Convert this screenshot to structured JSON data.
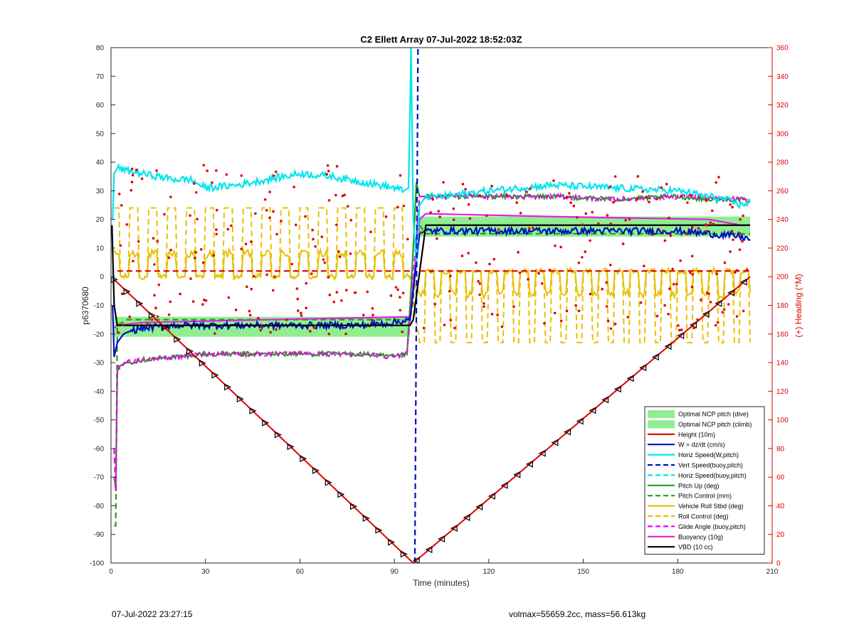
{
  "chart_data": {
    "type": "line",
    "title": "C2 Ellett Array 07-Jul-2022 18:52:03Z",
    "xlabel": "Time (minutes)",
    "ylabel": "p6370680",
    "y2label": "(+) Heading (°M)",
    "xlim": [
      0,
      210
    ],
    "ylim": [
      -100,
      80
    ],
    "y2lim": [
      0,
      360
    ],
    "xticks": [
      0,
      30,
      60,
      90,
      120,
      150,
      180,
      210
    ],
    "yticks": [
      -100,
      -90,
      -80,
      -70,
      -60,
      -50,
      -40,
      -30,
      -20,
      -10,
      0,
      10,
      20,
      30,
      40,
      50,
      60,
      70,
      80
    ],
    "y2ticks": [
      0,
      20,
      40,
      60,
      80,
      100,
      120,
      140,
      160,
      180,
      200,
      220,
      240,
      260,
      280,
      300,
      320,
      340,
      360
    ],
    "grid": false,
    "legend_position": "bottom-right",
    "series": [
      {
        "name": "Optimal NCP pitch (dive)",
        "style": "band",
        "color": "#90ee90",
        "x": [
          1,
          95
        ],
        "low": [
          -21,
          -21
        ],
        "high": [
          -14,
          -14
        ]
      },
      {
        "name": "Optimal NCP pitch (climb)",
        "style": "band",
        "color": "#90ee90",
        "x": [
          98,
          203
        ],
        "low": [
          14,
          14
        ],
        "high": [
          21,
          21
        ]
      },
      {
        "name": "Height (10m)",
        "style": "solid",
        "color": "#e00000",
        "x": [
          1,
          96,
          203
        ],
        "y": [
          -1,
          -100,
          0
        ]
      },
      {
        "name": "W = dz/dt (cm/s)",
        "style": "solid",
        "color": "#0010c0",
        "x": [
          0.5,
          1,
          2,
          4,
          6,
          10,
          20,
          30,
          40,
          50,
          60,
          70,
          80,
          90,
          95,
          96,
          97,
          98,
          100,
          120,
          140,
          160,
          180,
          190,
          200,
          203
        ],
        "y": [
          -10,
          -28,
          -23,
          -20,
          -19,
          -18,
          -17,
          -17,
          -17,
          -17,
          -17,
          -17,
          -17,
          -16,
          -15,
          -5,
          5,
          15,
          16,
          16,
          16,
          16,
          16,
          15,
          14,
          13
        ]
      },
      {
        "name": "Horiz Speed(W,pitch)",
        "style": "solid",
        "color": "#00e5ee",
        "x": [
          0.5,
          1,
          2,
          5,
          10,
          15,
          20,
          25,
          30,
          40,
          50,
          60,
          70,
          80,
          90,
          93,
          94.5,
          95,
          95.3,
          96,
          97,
          98,
          100,
          105,
          120,
          140,
          160,
          180,
          190,
          195,
          200,
          203
        ],
        "y": [
          20,
          36,
          38,
          37,
          36,
          35,
          34,
          34,
          31,
          32,
          34,
          36,
          35,
          33,
          31,
          30,
          31,
          60,
          80,
          20,
          5,
          25,
          28,
          28,
          30,
          32,
          31,
          30,
          28,
          27,
          25,
          26
        ]
      },
      {
        "name": "Vert Speed(buoy,pitch)",
        "style": "dashed",
        "color": "#0010c0",
        "x": [
          96.5,
          97,
          97.5
        ],
        "y": [
          -100,
          -10,
          80
        ]
      },
      {
        "name": "Horiz Speed(buoy,pitch)",
        "style": "dashed",
        "color": "#00e5ee",
        "x": [],
        "y": []
      },
      {
        "name": "Pitch Up (deg)",
        "style": "solid",
        "color": "#20a020",
        "x": [
          1,
          1.5,
          2,
          3,
          5,
          10,
          20,
          30,
          40,
          50,
          60,
          70,
          80,
          90,
          94,
          95,
          96,
          97,
          98,
          100,
          120,
          140,
          160,
          180,
          190,
          200,
          203
        ],
        "y": [
          -70,
          -74,
          -33,
          -31,
          -30,
          -29,
          -28,
          -27,
          -27,
          -27,
          -27,
          -27,
          -27,
          -28,
          -27,
          -10,
          10,
          33,
          28,
          28,
          28,
          28,
          27,
          28,
          27,
          27,
          26
        ]
      },
      {
        "name": "Pitch Control (mm)",
        "style": "dashed",
        "color": "#20a020",
        "x": [
          1,
          1.5,
          2,
          5,
          10,
          95,
          96,
          97,
          98,
          100,
          150,
          195,
          203
        ],
        "y": [
          -87,
          -87,
          -17,
          -15,
          -15,
          -15,
          -8,
          10,
          18,
          15,
          15,
          15,
          15
        ]
      },
      {
        "name": "Vehicle Roll Stbd (deg)",
        "style": "solid",
        "color": "#e8c000",
        "x": [],
        "y": []
      },
      {
        "name": "Roll Control (deg)",
        "style": "dashed",
        "color": "#e8c000",
        "x": [],
        "y": []
      },
      {
        "name": "Glide Angle (buoy,pitch)",
        "style": "dashed",
        "color": "#ee00ee",
        "x": [
          1,
          1.5,
          2,
          5,
          10,
          20,
          30,
          40,
          50,
          60,
          70,
          80,
          90,
          94,
          96,
          98,
          100,
          120,
          140,
          160,
          180,
          200,
          203
        ],
        "y": [
          -60,
          -75,
          -32,
          -30,
          -29,
          -28,
          -27,
          -27,
          -27,
          -27,
          -27,
          -27,
          -28,
          -27,
          0,
          28,
          28,
          28,
          28,
          27,
          28,
          27,
          26
        ]
      },
      {
        "name": "Buoyancy (10g)",
        "style": "solid",
        "color": "#e020e0",
        "x": [
          1,
          2,
          10,
          50,
          95,
          98,
          100,
          140,
          190,
          200,
          203
        ],
        "y": [
          -18,
          -17,
          -16,
          -15,
          -14,
          20,
          22,
          21,
          20,
          18,
          18
        ]
      },
      {
        "name": "VBD (10 cc)",
        "style": "solid",
        "color": "#000000",
        "x": [
          0.3,
          1,
          2,
          95,
          96,
          100,
          203
        ],
        "y": [
          18,
          -10,
          -17,
          -17,
          -15,
          18,
          18
        ]
      },
      {
        "name": "Heading",
        "style": "dots",
        "color": "#e00000",
        "axis": "y2",
        "x": [],
        "y": []
      }
    ]
  },
  "footer": {
    "left": "07-Jul-2022 23:27:15",
    "right": "volmax=55659.2cc, mass=56.613kg"
  }
}
